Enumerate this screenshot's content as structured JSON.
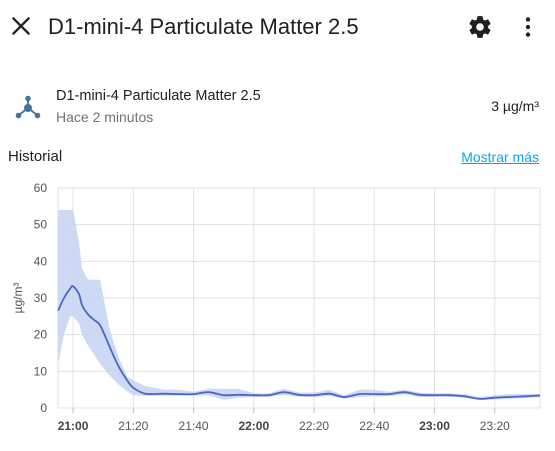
{
  "header": {
    "title": "D1-mini-4 Particulate Matter 2.5",
    "icons": {
      "close": "close-icon",
      "settings": "gear-icon",
      "more": "more-vertical-icon"
    }
  },
  "entity": {
    "icon": "molecule-icon",
    "name": "D1-mini-4 Particulate Matter 2.5",
    "last_changed": "Hace 2 minutos",
    "state": "3 µg/m³"
  },
  "history": {
    "title": "Historial",
    "show_more": "Mostrar más"
  },
  "colors": {
    "line": "#4a67c4",
    "band": "#c5d2f3",
    "link": "#03a9f4",
    "grid": "#e0e0e0"
  },
  "chart_data": {
    "type": "line",
    "ylabel": "µg/m³",
    "ylim": [
      0,
      60
    ],
    "yticks": [
      0,
      10,
      20,
      30,
      40,
      50,
      60
    ],
    "xlim": [
      "20:55",
      "23:35"
    ],
    "xticks": [
      {
        "label": "21:00",
        "bold": true
      },
      {
        "label": "21:20",
        "bold": false
      },
      {
        "label": "21:40",
        "bold": false
      },
      {
        "label": "22:00",
        "bold": true
      },
      {
        "label": "22:20",
        "bold": false
      },
      {
        "label": "22:40",
        "bold": false
      },
      {
        "label": "23:00",
        "bold": true
      },
      {
        "label": "23:20",
        "bold": false
      }
    ],
    "series": [
      {
        "x": [
          "20:55",
          "20:57",
          "20:59",
          "21:00",
          "21:02",
          "21:03",
          "21:05",
          "21:07",
          "21:09",
          "21:12",
          "21:15",
          "21:18",
          "21:20",
          "21:24",
          "21:30",
          "21:35",
          "21:40",
          "21:45",
          "21:50",
          "21:55",
          "22:00",
          "22:05",
          "22:10",
          "22:15",
          "22:20",
          "22:25",
          "22:30",
          "22:35",
          "22:40",
          "22:45",
          "22:50",
          "22:55",
          "23:00",
          "23:05",
          "23:10",
          "23:15",
          "23:20",
          "23:25",
          "23:30",
          "23:35"
        ],
        "mean": [
          26.5,
          30.0,
          32.5,
          33.2,
          31.0,
          28.0,
          25.5,
          24.0,
          22.5,
          17.0,
          11.5,
          7.5,
          5.5,
          3.9,
          3.9,
          3.8,
          3.8,
          4.3,
          3.5,
          3.6,
          3.5,
          3.5,
          4.3,
          3.6,
          3.5,
          3.9,
          3.0,
          3.8,
          3.8,
          3.8,
          4.3,
          3.6,
          3.5,
          3.5,
          3.2,
          2.5,
          2.8,
          3.0,
          3.2,
          3.4
        ],
        "min": [
          12.0,
          20.0,
          25.0,
          25.0,
          23.0,
          20.0,
          17.0,
          14.5,
          12.0,
          9.0,
          6.5,
          4.5,
          3.5,
          3.3,
          3.3,
          3.4,
          3.3,
          3.5,
          2.2,
          2.8,
          3.0,
          3.0,
          3.6,
          3.0,
          3.0,
          3.3,
          2.5,
          3.0,
          3.2,
          3.2,
          3.7,
          3.0,
          3.0,
          3.0,
          2.8,
          2.2,
          2.3,
          2.5,
          2.7,
          2.9
        ],
        "max": [
          54.0,
          54.0,
          54.0,
          54.0,
          45.0,
          38.0,
          35.0,
          35.0,
          35.0,
          22.0,
          14.0,
          8.5,
          7.5,
          6.0,
          5.0,
          5.0,
          4.4,
          5.3,
          5.2,
          5.2,
          4.0,
          4.0,
          5.3,
          4.2,
          4.2,
          5.0,
          3.5,
          5.0,
          5.0,
          4.4,
          5.0,
          4.2,
          4.0,
          4.0,
          3.7,
          3.0,
          3.5,
          3.8,
          3.8,
          3.9
        ]
      }
    ],
    "grid": true,
    "legend": "none"
  }
}
